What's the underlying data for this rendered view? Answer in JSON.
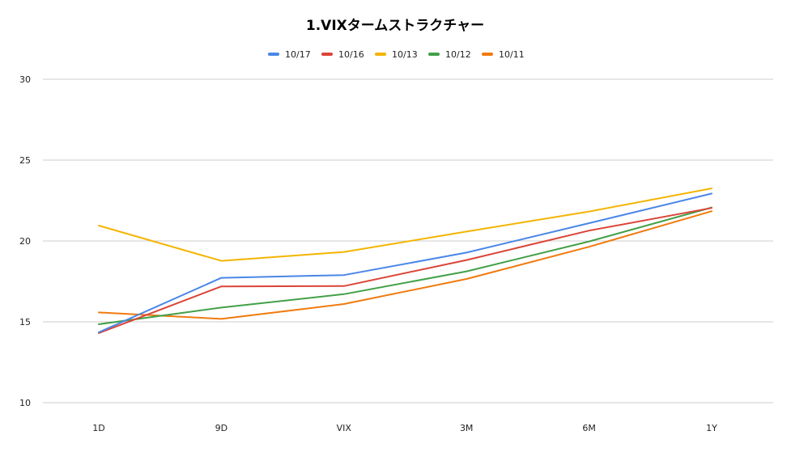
{
  "chart_data": {
    "type": "line",
    "title": "1.VIXタームストラクチャー",
    "xlabel": "",
    "ylabel": "",
    "categories": [
      "1D",
      "9D",
      "VIX",
      "3M",
      "6M",
      "1Y"
    ],
    "ylim": [
      10,
      30
    ],
    "yticks": [
      10,
      15,
      20,
      25,
      30
    ],
    "grid": true,
    "legend_position": "top",
    "series": [
      {
        "name": "10/17",
        "color": "#4a86e8",
        "values": [
          14.35,
          17.72,
          17.89,
          19.28,
          21.1,
          22.93
        ]
      },
      {
        "name": "10/16",
        "color": "#db4437",
        "values": [
          14.3,
          17.19,
          17.21,
          18.82,
          20.64,
          22.04
        ]
      },
      {
        "name": "10/13",
        "color": "#f4b400",
        "values": [
          20.95,
          18.77,
          19.32,
          20.58,
          21.82,
          23.25
        ]
      },
      {
        "name": "10/12",
        "color": "#43a047",
        "values": [
          14.85,
          15.88,
          16.71,
          18.12,
          19.97,
          22.07
        ]
      },
      {
        "name": "10/11",
        "color": "#f07a0e",
        "values": [
          15.58,
          15.18,
          16.1,
          17.65,
          19.64,
          21.84
        ]
      }
    ]
  }
}
